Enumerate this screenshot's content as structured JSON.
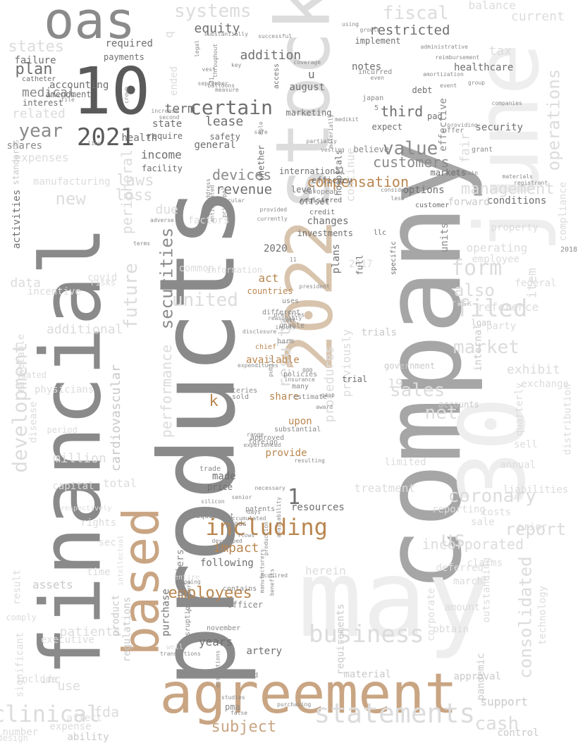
{
  "colors": {
    "background": "#ffffff",
    "palette": [
      "#eeeeee",
      "#dcdcdc",
      "#c9c9c9",
      "#a6a6a6",
      "#8a8a8a",
      "#6f6f6f",
      "#5a5a5a",
      "#c9a583",
      "#d8c4ad",
      "#b9864f",
      "#9a6a30"
    ]
  },
  "words": [
    "company",
    "products",
    "financial",
    "may",
    "june",
    "30",
    "stock",
    "2022",
    "agreement",
    "based",
    "10",
    "oas",
    "including",
    "statements",
    "business",
    "certain",
    "value",
    "2021",
    "year",
    "securities",
    "employees",
    "systems",
    "fiscal",
    "equity",
    "restricted",
    "customers",
    "compensation",
    "devices",
    "revenue",
    "operations",
    "management",
    "form",
    "filed",
    "market",
    "net",
    "sales",
    "also",
    "future",
    "performance",
    "peripheral",
    "coronary",
    "report",
    "consolidated",
    "clinical",
    "subject",
    "results",
    "cash",
    "1",
    "k",
    "impact",
    "following",
    "years",
    "artery",
    "provide",
    "upon",
    "share",
    "available",
    "act",
    "countries",
    "resources",
    "plan",
    "medical",
    "states",
    "related",
    "expenses",
    "shares",
    "income",
    "laws",
    "new",
    "due",
    "development",
    "activities",
    "cardiovascular",
    "term",
    "lease",
    "health",
    "state",
    "accounting",
    "interest",
    "amendment",
    "payments",
    "required",
    "failure",
    "catheter",
    "addition",
    "notes",
    "third",
    "debt",
    "marketing",
    "fair",
    "security",
    "healthcare",
    "tax",
    "balance",
    "current",
    "international",
    "level",
    "markets",
    "changes",
    "investments",
    "price",
    "made",
    "trade",
    "equipment",
    "patents",
    "suppliers",
    "purchase",
    "officer",
    "november",
    "board",
    "limitations",
    "pma",
    "studies",
    "false",
    "treatment",
    "incorporated",
    "herein",
    "us",
    "reference",
    "exhibit",
    "item",
    "federal",
    "property",
    "operating",
    "conditions",
    "forward",
    "quarterly",
    "accounts",
    "internal",
    "government",
    "risk",
    "loan",
    "trials",
    "material",
    "requirements",
    "approval",
    "pandemic",
    "support",
    "control",
    "ability",
    "use",
    "fda",
    "inc",
    "assets",
    "patients",
    "regulations",
    "product",
    "data",
    "total",
    "million",
    "united",
    "common",
    "factors",
    "information",
    "procedures",
    "previously",
    "continue",
    "2017",
    "2020",
    "19",
    "u",
    "august",
    "access",
    "general",
    "safety",
    "whether",
    "require",
    "facility",
    "ended",
    "q",
    "options",
    "units",
    "customer",
    "include",
    "capital",
    "period",
    "physicians",
    "disease",
    "trial",
    "risks",
    "efficacy",
    "hospitals",
    "european",
    "credit",
    "offset",
    "registered",
    "llc",
    "full",
    "plans",
    "specific",
    "president",
    "uses",
    "different",
    "seek",
    "unable",
    "harm",
    "chief",
    "policies",
    "many",
    "insurance",
    "estimate",
    "gaap",
    "award",
    "sold",
    "arteries",
    "range",
    "foreign",
    "approved",
    "experienced",
    "substantial",
    "resulting",
    "availability",
    "necessary",
    "silicon",
    "senior",
    "days",
    "accumulated",
    "flows",
    "developed",
    "production",
    "goods",
    "acquired",
    "manufacturers",
    "benefits",
    "procedure",
    "ongoing",
    "contains",
    "disruptions",
    "assumptions",
    "purchasing",
    "2023",
    "000",
    "11",
    "practices",
    "reasonably",
    "disclosure",
    "inputs",
    "expenditures",
    "public",
    "crown",
    "file",
    "line",
    "increase",
    "second",
    "measure",
    "key",
    "legal",
    "able",
    "safe",
    "vascular",
    "principal",
    "address",
    "provided",
    "currently",
    "anticipated",
    "adverse",
    "terms",
    "31",
    "vest",
    "substantially",
    "successful",
    "coverage",
    "using",
    "growth",
    "implement",
    "administrative",
    "reimbursement",
    "amortization",
    "group",
    "maintain",
    "materials",
    "registrant",
    "grant",
    "offer",
    "providing",
    "event",
    "companies",
    "effective",
    "pad",
    "expect",
    "believe",
    "partially",
    "vesting",
    "materially",
    "medikit",
    "japan",
    "5",
    "considered",
    "less",
    "2018",
    "employee",
    "compliance",
    "distribution",
    "party",
    "sell",
    "exchange",
    "prior",
    "annual",
    "liabilities",
    "costs",
    "obtain",
    "amount",
    "corporate",
    "march",
    "reporting",
    "sale",
    "limited",
    "deferred",
    "outstanding",
    "technology",
    "claims",
    "loss",
    "manufacturing",
    "standards",
    "incentive",
    "covid",
    "additional",
    "marketable",
    "significant",
    "number",
    "design",
    "expense",
    "affect",
    "comply",
    "result",
    "executive",
    "time",
    "sec",
    "rights",
    "dated",
    "incurred",
    "even",
    "september",
    "balloons",
    "throughout",
    "entire",
    "intellectual",
    "well",
    "transactions",
    "respectively",
    "activity",
    "allowance"
  ]
}
